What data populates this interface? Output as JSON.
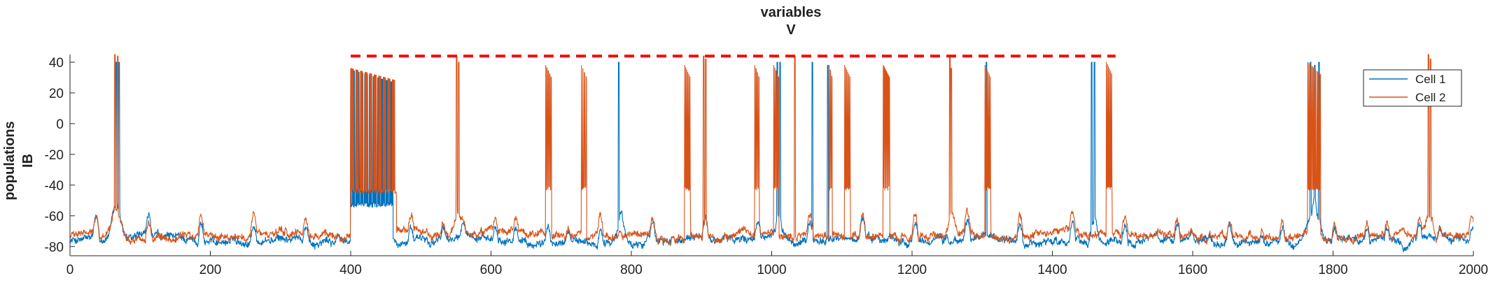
{
  "chart_data": {
    "type": "line",
    "title": [
      "variables",
      "V"
    ],
    "xlabel": "",
    "ylabel": [
      "populations",
      "IB"
    ],
    "xlim": [
      0,
      2000
    ],
    "ylim": [
      -86,
      45
    ],
    "x_ticks": [
      0,
      200,
      400,
      600,
      800,
      1000,
      1200,
      1400,
      1600,
      1800,
      2000
    ],
    "y_ticks": [
      -80,
      -60,
      -40,
      -20,
      0,
      20,
      40
    ],
    "x_tick_labels": [
      "0",
      "200",
      "400",
      "600",
      "800",
      "1000",
      "1200",
      "1400",
      "1600",
      "1800",
      "2000"
    ],
    "y_tick_labels": [
      "-80",
      "-60",
      "-40",
      "-20",
      "0",
      "20",
      "40"
    ],
    "grid": false,
    "legend": {
      "placement": "top-right",
      "entries": [
        {
          "label": "Cell 1",
          "color": "#0072BD"
        },
        {
          "label": "Cell 2",
          "color": "#D95319"
        }
      ]
    },
    "series": [
      {
        "name": "Cell 1",
        "color": "#0072BD",
        "baseline": -76,
        "noise": 3.2,
        "spikes": [
          {
            "t": 66,
            "peak": 40
          },
          {
            "t": 70,
            "peak": 40
          },
          {
            "t": 782,
            "peak": 40
          },
          {
            "t": 1008,
            "peak": 40
          },
          {
            "t": 1012,
            "peak": 40
          },
          {
            "t": 1058,
            "peak": 40
          },
          {
            "t": 1080,
            "peak": 38
          },
          {
            "t": 1306,
            "peak": 40
          },
          {
            "t": 1456,
            "peak": 40
          },
          {
            "t": 1460,
            "peak": 40
          },
          {
            "t": 1768,
            "peak": 40
          },
          {
            "t": 1774,
            "peak": 38
          },
          {
            "t": 1780,
            "peak": 40
          }
        ],
        "bursts": [
          {
            "start": 400,
            "end": 460,
            "low": -53,
            "high": 35,
            "count": 55
          }
        ],
        "bumps": [
          {
            "t": 66,
            "amp": 20,
            "w": 9
          },
          {
            "t": 785,
            "amp": 16,
            "w": 6
          },
          {
            "t": 1010,
            "amp": 14,
            "w": 6
          },
          {
            "t": 1460,
            "amp": 16,
            "w": 6
          },
          {
            "t": 1772,
            "amp": 22,
            "w": 12
          }
        ]
      },
      {
        "name": "Cell 2",
        "color": "#D95319",
        "baseline": -73,
        "noise": 3.2,
        "spikes": [
          {
            "t": 64,
            "peak": 45
          },
          {
            "t": 68,
            "peak": 44
          },
          {
            "t": 551,
            "peak": 44
          },
          {
            "t": 554,
            "peak": 40
          },
          {
            "t": 903,
            "peak": 44
          },
          {
            "t": 906,
            "peak": 42
          },
          {
            "t": 1033,
            "peak": 44
          },
          {
            "t": 1254,
            "peak": 44
          },
          {
            "t": 1256,
            "peak": 36
          },
          {
            "t": 1936,
            "peak": 45
          },
          {
            "t": 1939,
            "peak": 42
          }
        ],
        "bursts": [
          {
            "start": 400,
            "end": 465,
            "low": -44,
            "high": 36,
            "count": 70
          },
          {
            "start": 678,
            "end": 686,
            "low": -42,
            "high": 38,
            "count": 12
          },
          {
            "start": 729,
            "end": 736,
            "low": -42,
            "high": 38,
            "count": 11
          },
          {
            "start": 876,
            "end": 884,
            "low": -42,
            "high": 38,
            "count": 11
          },
          {
            "start": 976,
            "end": 982,
            "low": -42,
            "high": 38,
            "count": 9
          },
          {
            "start": 1003,
            "end": 1010,
            "low": -42,
            "high": 38,
            "count": 10
          },
          {
            "start": 1082,
            "end": 1086,
            "low": -42,
            "high": 38,
            "count": 6
          },
          {
            "start": 1104,
            "end": 1112,
            "low": -42,
            "high": 38,
            "count": 11
          },
          {
            "start": 1159,
            "end": 1168,
            "low": -42,
            "high": 38,
            "count": 12
          },
          {
            "start": 1304,
            "end": 1312,
            "low": -42,
            "high": 38,
            "count": 11
          },
          {
            "start": 1477,
            "end": 1485,
            "low": -42,
            "high": 40,
            "count": 11
          },
          {
            "start": 1764,
            "end": 1782,
            "low": -42,
            "high": 40,
            "count": 25
          }
        ],
        "bumps": [
          {
            "t": 66,
            "amp": 18,
            "w": 9
          },
          {
            "t": 553,
            "amp": 14,
            "w": 6
          },
          {
            "t": 1256,
            "amp": 14,
            "w": 6
          },
          {
            "t": 1938,
            "amp": 16,
            "w": 7
          }
        ]
      }
    ],
    "annotations": [
      {
        "type": "dashed-line",
        "x_start": 400,
        "x_end": 1490,
        "y": 44,
        "color": "#FF0000"
      }
    ]
  }
}
